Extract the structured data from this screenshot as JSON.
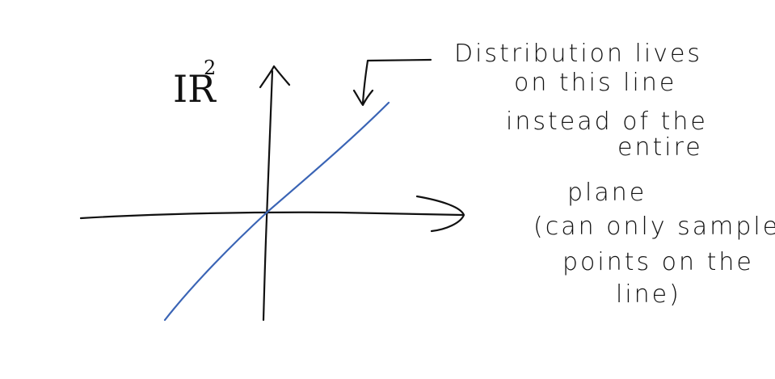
{
  "space": {
    "symbol": "IR",
    "exponent": "2"
  },
  "annotation": {
    "lines": [
      "Distribution lives",
      "on this line",
      "instead  of the",
      "entire",
      "plane",
      "(can only sample",
      "points on the",
      "line)"
    ]
  },
  "colors": {
    "ink": "#111111",
    "distribution_line": "#3a64b5"
  }
}
